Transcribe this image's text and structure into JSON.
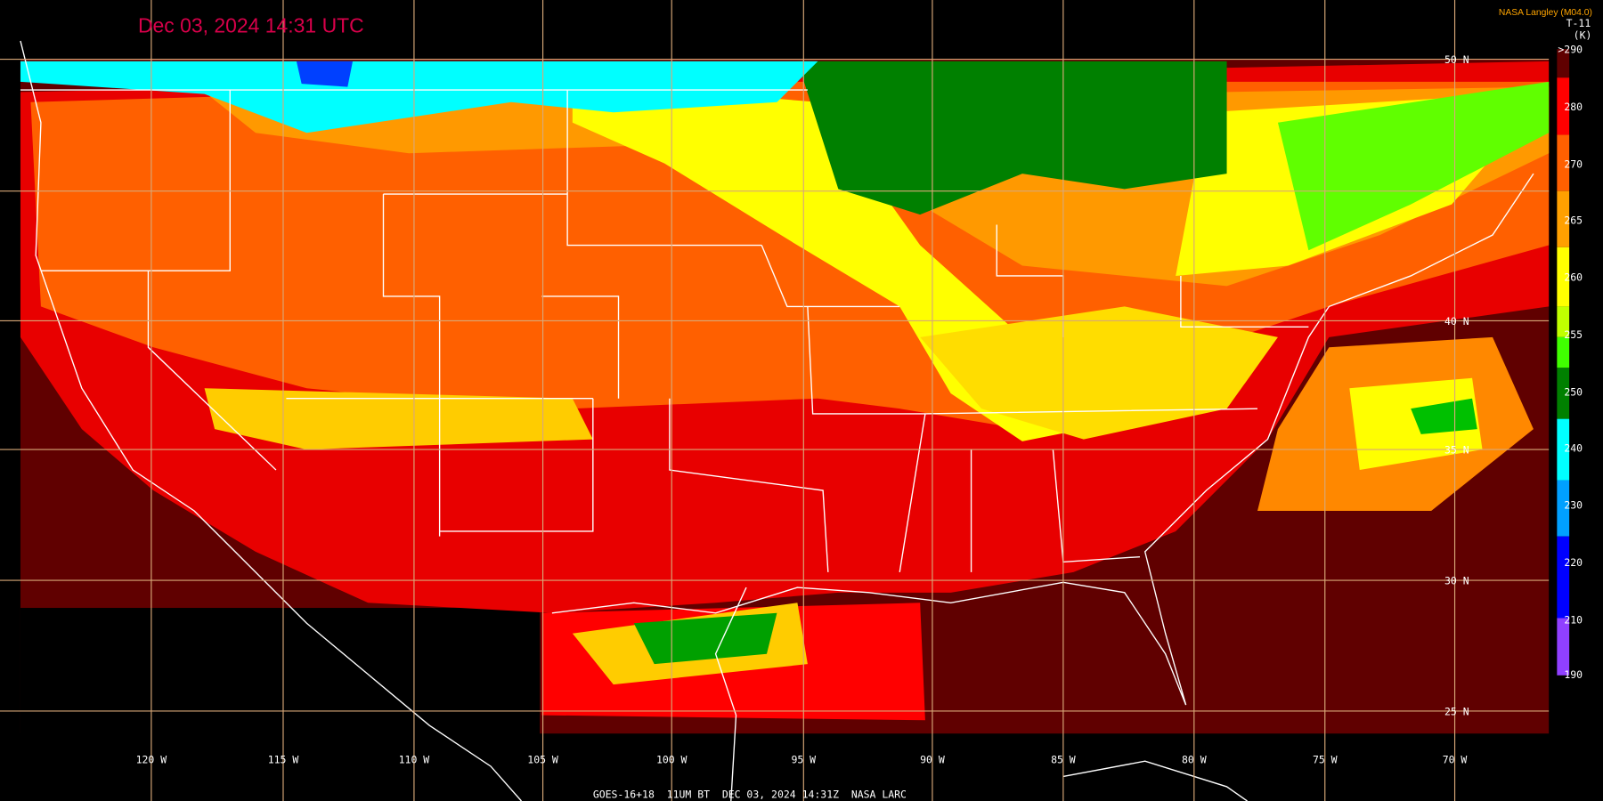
{
  "header": {
    "title": "Dec 03, 2024 14:31 UTC",
    "credit": "NASA Langley (M04.0)"
  },
  "legend": {
    "channel": "T-11",
    "unit": "(K)",
    "ticks": [
      {
        "value": 290,
        "label": ">290"
      },
      280,
      270,
      265,
      260,
      255,
      250,
      240,
      230,
      220,
      210,
      190
    ]
  },
  "grid": {
    "latitudes": [
      "50 N",
      "40 N",
      "35 N",
      "30 N",
      "25 N"
    ],
    "longitudes": [
      "120 W",
      "115 W",
      "110 W",
      "105 W",
      "100 W",
      "95 W",
      "90 W",
      "85 W",
      "80 W",
      "75 W",
      "70 W"
    ]
  },
  "footer": "GOES-16+18  11UM BT  DEC 03, 2024 14:31Z  NASA LARC"
}
